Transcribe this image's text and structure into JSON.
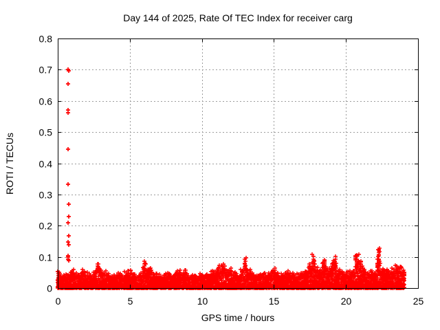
{
  "page": {
    "background": "#ffffff"
  },
  "chart_data": {
    "type": "scatter",
    "title": "Day 144 of 2025, Rate Of TEC Index for receiver carg",
    "xlabel": "GPS time / hours",
    "ylabel": "ROTI / TECUs",
    "xlim": [
      0,
      25
    ],
    "ylim": [
      0,
      0.8
    ],
    "xticks": [
      0,
      5,
      10,
      15,
      20,
      25
    ],
    "xtick_labels": [
      "0",
      "5",
      "10",
      "15",
      "20",
      "25"
    ],
    "yticks": [
      0,
      0.1,
      0.2,
      0.3,
      0.4,
      0.5,
      0.6,
      0.7,
      0.8
    ],
    "ytick_labels": [
      "0",
      "0.1",
      "0.2",
      "0.3",
      "0.4",
      "0.5",
      "0.6",
      "0.7",
      "0.8"
    ],
    "grid": true,
    "grid_style": "dashed",
    "legend_position": "none",
    "marker": "+",
    "marker_color": "#ff0000",
    "grid_color": "#9b9b9b",
    "axis_color": "#000000",
    "background_color": "#ffffff",
    "series": [
      {
        "name": "ROTI",
        "data_start_hour": 0,
        "data_end_hour": 24.05,
        "outliers": [
          [
            0.0,
            0.052
          ],
          [
            0.7,
            0.7
          ],
          [
            0.75,
            0.697
          ],
          [
            0.72,
            0.655
          ],
          [
            0.7,
            0.571
          ],
          [
            0.72,
            0.561
          ],
          [
            0.72,
            0.445
          ],
          [
            0.72,
            0.332
          ],
          [
            0.74,
            0.268
          ],
          [
            0.74,
            0.23
          ],
          [
            0.72,
            0.21
          ],
          [
            0.74,
            0.168
          ],
          [
            0.72,
            0.147
          ],
          [
            0.74,
            0.139
          ],
          [
            0.7,
            0.104
          ],
          [
            0.72,
            0.099
          ],
          [
            0.72,
            0.093
          ],
          [
            0.74,
            0.089
          ]
        ],
        "band_envelope": {
          "description": "upper envelope (TECUs) of the dense ROTI scatter band, sampled every 0.25 h from 0 to 24 h",
          "start_hour": 0,
          "step_hours": 0.25,
          "max_values": [
            0.055,
            0.042,
            0.046,
            0.042,
            0.065,
            0.052,
            0.046,
            0.06,
            0.05,
            0.046,
            0.052,
            0.08,
            0.07,
            0.056,
            0.046,
            0.042,
            0.046,
            0.05,
            0.042,
            0.055,
            0.06,
            0.046,
            0.042,
            0.05,
            0.086,
            0.075,
            0.065,
            0.05,
            0.046,
            0.042,
            0.046,
            0.05,
            0.046,
            0.056,
            0.06,
            0.058,
            0.052,
            0.046,
            0.042,
            0.046,
            0.05,
            0.046,
            0.05,
            0.056,
            0.06,
            0.075,
            0.08,
            0.06,
            0.065,
            0.056,
            0.05,
            0.06,
            0.097,
            0.07,
            0.05,
            0.046,
            0.05,
            0.055,
            0.046,
            0.05,
            0.075,
            0.05,
            0.046,
            0.05,
            0.055,
            0.05,
            0.046,
            0.05,
            0.055,
            0.06,
            0.08,
            0.108,
            0.07,
            0.075,
            0.09,
            0.07,
            0.08,
            0.108,
            0.06,
            0.055,
            0.052,
            0.056,
            0.06,
            0.108,
            0.09,
            0.065,
            0.052,
            0.056,
            0.06,
            0.13,
            0.07,
            0.06,
            0.056,
            0.065,
            0.075,
            0.07,
            0.06
          ]
        }
      }
    ]
  }
}
